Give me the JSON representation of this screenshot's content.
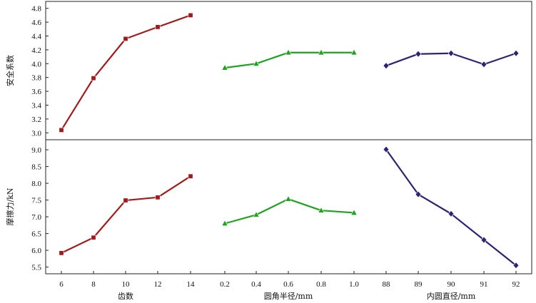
{
  "chart_data": {
    "type": "line",
    "panels": [
      {
        "ylabel": "安全系数",
        "ylim": [
          2.9,
          4.9
        ],
        "yticks": [
          "3.0",
          "3.2",
          "3.4",
          "3.6",
          "3.8",
          "4.0",
          "4.2",
          "4.4",
          "4.6",
          "4.8"
        ],
        "series": [
          {
            "name": "齿数",
            "color": "#a01c1c",
            "marker": "square",
            "values": [
              3.04,
              3.79,
              4.36,
              4.53,
              4.7
            ]
          },
          {
            "name": "圆角半径/mm",
            "color": "#1fa31f",
            "marker": "triangle",
            "values": [
              3.94,
              4.0,
              4.16,
              4.16,
              4.16
            ]
          },
          {
            "name": "内圆直径/mm",
            "color": "#2e2373",
            "marker": "diamond",
            "values": [
              3.97,
              4.14,
              4.15,
              3.99,
              4.15
            ]
          }
        ]
      },
      {
        "ylabel": "摩擦力/kN",
        "ylim": [
          5.3,
          9.3
        ],
        "yticks": [
          "5.5",
          "6.0",
          "6.5",
          "7.0",
          "7.5",
          "8.0",
          "8.5",
          "9.0"
        ],
        "series": [
          {
            "name": "齿数",
            "color": "#a01c1c",
            "marker": "square",
            "values": [
              5.92,
              6.38,
              7.49,
              7.58,
              8.21
            ]
          },
          {
            "name": "圆角半径/mm",
            "color": "#1fa31f",
            "marker": "triangle",
            "values": [
              6.8,
              7.06,
              7.53,
              7.19,
              7.12
            ]
          },
          {
            "name": "内圆直径/mm",
            "color": "#2e2373",
            "marker": "diamond",
            "values": [
              9.01,
              7.67,
              7.09,
              6.31,
              5.55
            ]
          }
        ]
      }
    ],
    "groups": [
      {
        "xlabel": "齿数",
        "ticks": [
          "6",
          "8",
          "10",
          "12",
          "14"
        ]
      },
      {
        "xlabel": "圆角半径/mm",
        "ticks": [
          "0.2",
          "0.4",
          "0.6",
          "0.8",
          "1.0"
        ]
      },
      {
        "xlabel": "内圆直径/mm",
        "ticks": [
          "88",
          "89",
          "90",
          "91",
          "92"
        ]
      }
    ]
  }
}
